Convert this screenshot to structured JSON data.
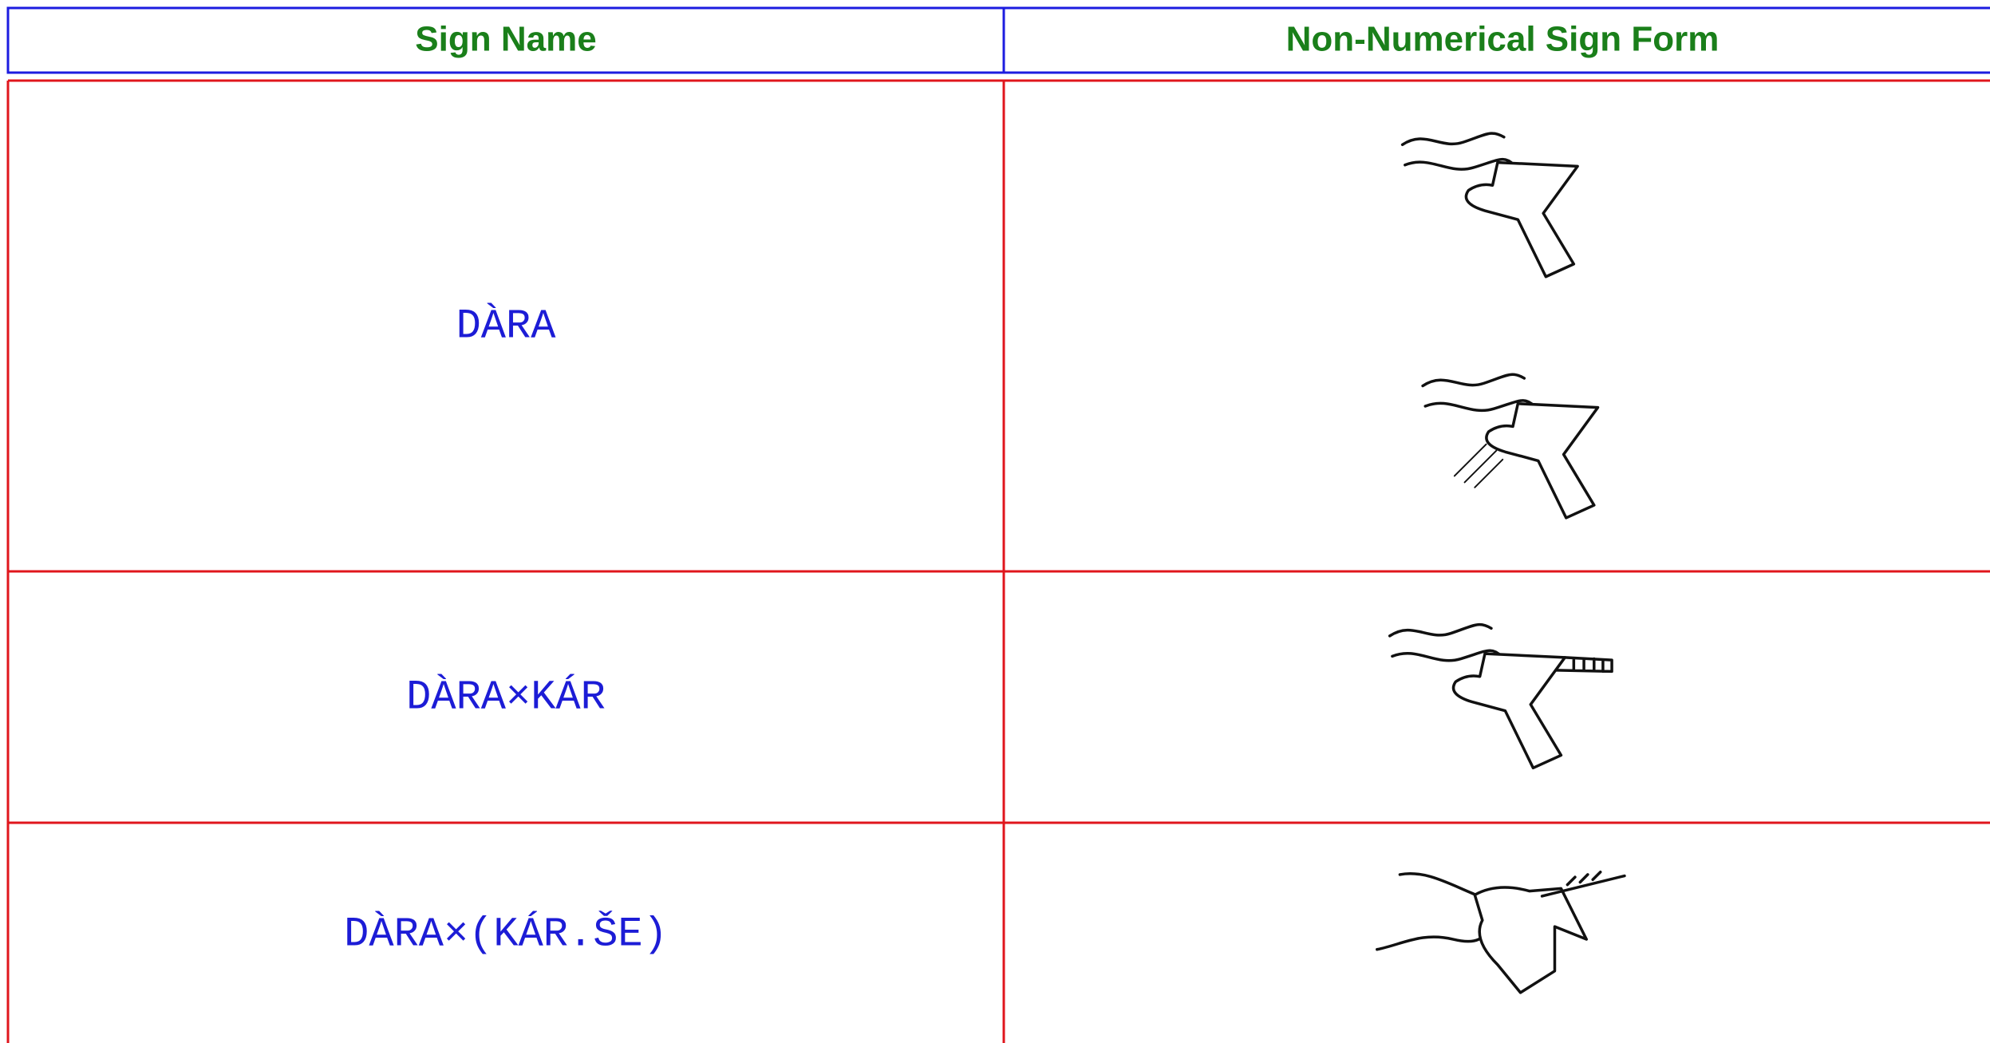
{
  "header": {
    "columns": [
      "Sign Name",
      "Non-Numerical Sign Form"
    ]
  },
  "table": {
    "rows": [
      [
        "DÀRA"
      ],
      [
        "DÀRA×KÁR"
      ],
      [
        "DÀRA×(KÁR.ŠE)"
      ]
    ]
  }
}
